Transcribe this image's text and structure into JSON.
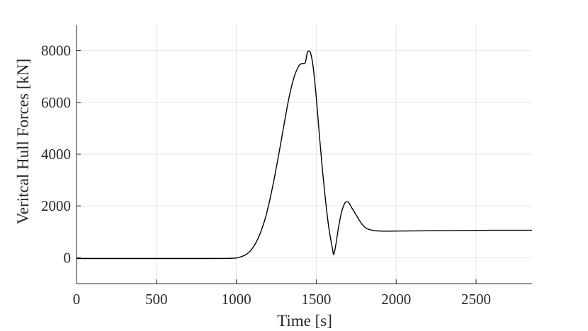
{
  "chart_data": {
    "type": "line",
    "title": "",
    "xlabel": "Time [s]",
    "ylabel": "Veritcal Hull Forces [kN]",
    "xlim": [
      0,
      2850
    ],
    "ylim": [
      -1000,
      9000
    ],
    "grid": true,
    "x_ticks": [
      0,
      500,
      1000,
      1500,
      2000,
      2500
    ],
    "x_tick_labels": [
      "0",
      "500",
      "1000",
      "1500",
      "2000",
      "2500"
    ],
    "y_ticks": [
      0,
      2000,
      4000,
      6000,
      8000
    ],
    "y_tick_labels": [
      "0",
      "2000",
      "4000",
      "6000",
      "8000"
    ],
    "series": [
      {
        "color": "#000000",
        "x": [
          0,
          200,
          400,
          600,
          800,
          900,
          950,
          1000,
          1030,
          1060,
          1090,
          1120,
          1150,
          1180,
          1210,
          1240,
          1270,
          1300,
          1330,
          1360,
          1390,
          1410,
          1430,
          1440,
          1445,
          1455,
          1465,
          1480,
          1500,
          1520,
          1540,
          1560,
          1580,
          1600,
          1610,
          1625,
          1640,
          1660,
          1680,
          1700,
          1720,
          1750,
          1780,
          1810,
          1850,
          1900,
          2000,
          2200,
          2400,
          2600,
          2850
        ],
        "y": [
          -30,
          -30,
          -30,
          -30,
          -30,
          -28,
          -25,
          -10,
          40,
          120,
          280,
          550,
          950,
          1500,
          2250,
          3150,
          4150,
          5200,
          6200,
          6950,
          7400,
          7500,
          7520,
          7800,
          7950,
          7980,
          7900,
          7400,
          6200,
          4700,
          3300,
          2100,
          1100,
          400,
          130,
          600,
          1200,
          1800,
          2120,
          2150,
          1950,
          1650,
          1350,
          1150,
          1060,
          1030,
          1030,
          1040,
          1050,
          1060,
          1060
        ]
      }
    ]
  }
}
